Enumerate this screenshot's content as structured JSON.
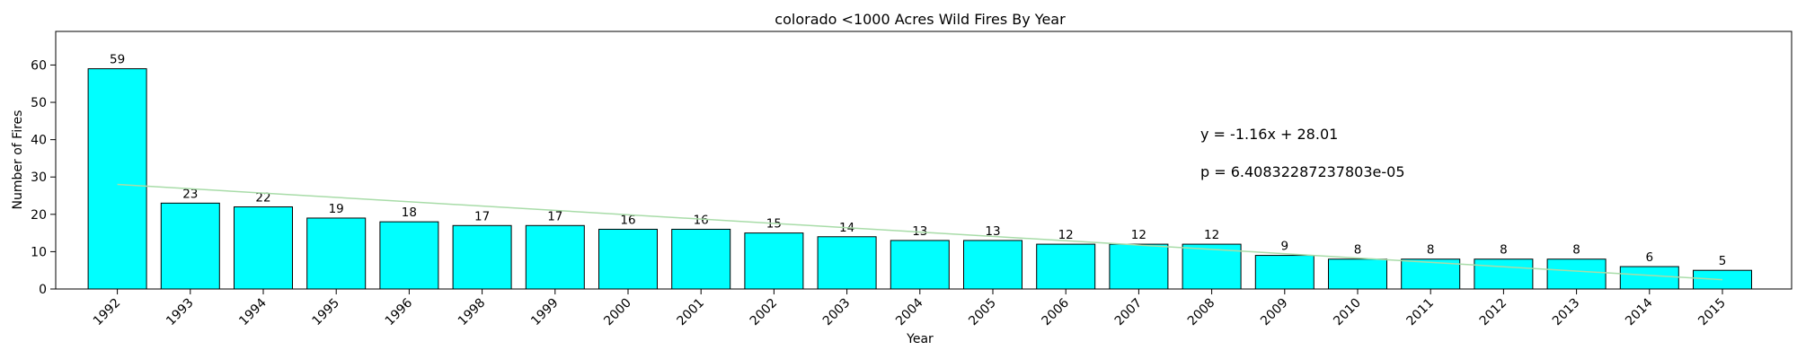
{
  "chart_data": {
    "type": "bar",
    "title": "colorado <1000 Acres Wild Fires By Year",
    "xlabel": "Year",
    "ylabel": "Number of Fires",
    "categories": [
      "1992",
      "1993",
      "1994",
      "1995",
      "1996",
      "1998",
      "1999",
      "2000",
      "2001",
      "2002",
      "2003",
      "2004",
      "2005",
      "2006",
      "2007",
      "2008",
      "2009",
      "2010",
      "2011",
      "2012",
      "2013",
      "2014",
      "2015"
    ],
    "values": [
      59,
      23,
      22,
      19,
      18,
      17,
      17,
      16,
      16,
      15,
      14,
      13,
      13,
      12,
      12,
      12,
      9,
      8,
      8,
      8,
      8,
      6,
      5
    ],
    "ylim": [
      0,
      69
    ],
    "yticks": [
      0,
      10,
      20,
      30,
      40,
      50,
      60
    ],
    "grid": false,
    "bar_color": "#00ffff",
    "bar_edge_color": "#000000",
    "trendline": {
      "slope": -1.16,
      "intercept": 28.01,
      "color": "#a8dca8"
    },
    "annotations": [
      {
        "text": "y = -1.16x + 28.01",
        "color": "#008000"
      },
      {
        "text": "p = 6.40832287237803e-05",
        "color": "#0000ff"
      }
    ]
  }
}
